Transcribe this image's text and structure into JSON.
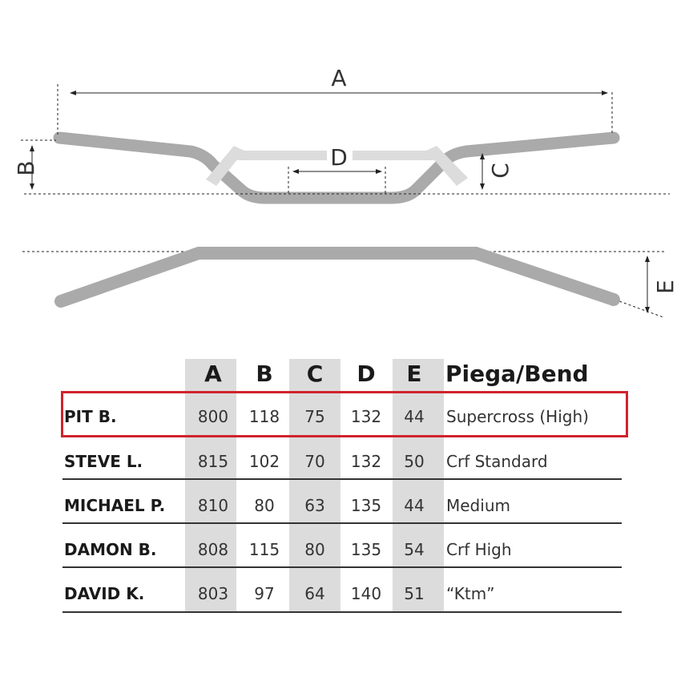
{
  "diagram": {
    "labels": [
      "A",
      "B",
      "C",
      "D",
      "E"
    ],
    "bar_color": "#aaaaaa",
    "marker_color": "#dddddd"
  },
  "table": {
    "headers": [
      "A",
      "B",
      "C",
      "D",
      "E",
      "Piega/Bend"
    ],
    "highlight_color": "#d0232e",
    "highlighted_row": 0,
    "rows": [
      {
        "name": "PIT B.",
        "A": "800",
        "B": "118",
        "C": "75",
        "D": "132",
        "E": "44",
        "bend": "Supercross (High)"
      },
      {
        "name": "STEVE L.",
        "A": "815",
        "B": "102",
        "C": "70",
        "D": "132",
        "E": "50",
        "bend": "Crf Standard"
      },
      {
        "name": "MICHAEL P.",
        "A": "810",
        "B": "80",
        "C": "63",
        "D": "135",
        "E": "44",
        "bend": "Medium"
      },
      {
        "name": "DAMON B.",
        "A": "808",
        "B": "115",
        "C": "80",
        "D": "135",
        "E": "54",
        "bend": "Crf High"
      },
      {
        "name": "DAVID K.",
        "A": "803",
        "B": "97",
        "C": "64",
        "D": "140",
        "E": "51",
        "bend": "“Ktm”"
      }
    ]
  }
}
